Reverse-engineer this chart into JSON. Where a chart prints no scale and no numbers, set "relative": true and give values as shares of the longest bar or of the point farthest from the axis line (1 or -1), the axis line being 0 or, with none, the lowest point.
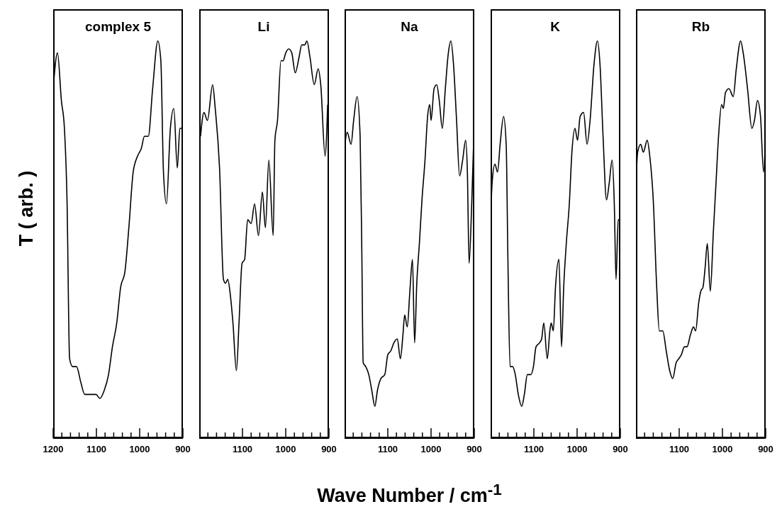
{
  "chart_data": [
    {
      "type": "line",
      "title": "complex 5",
      "ylabel": "T  ( arb. )",
      "relative": true,
      "color": "#000000",
      "xlim": [
        1200,
        900
      ],
      "xticks": [
        1200,
        {
          "value": 1180,
          "label": null
        },
        {
          "value": 1160,
          "label": null
        },
        {
          "value": 1140,
          "label": null
        },
        {
          "value": 1120,
          "label": null
        },
        1100,
        {
          "value": 1080,
          "label": null
        },
        {
          "value": 1060,
          "label": null
        },
        {
          "value": 1040,
          "label": null
        },
        {
          "value": 1020,
          "label": null
        },
        1000,
        {
          "value": 980,
          "label": null
        },
        {
          "value": 960,
          "label": null
        },
        {
          "value": 940,
          "label": null
        },
        {
          "value": 920,
          "label": null
        },
        900
      ],
      "x": [
        1200,
        1190,
        1181,
        1174,
        1168,
        1162,
        1155,
        1146,
        1136,
        1127,
        1120,
        1111,
        1101,
        1092,
        1082,
        1072,
        1063,
        1053,
        1044,
        1034,
        1025,
        1015,
        1005,
        996,
        989,
        980,
        970,
        958,
        951,
        945,
        938,
        929,
        921,
        913,
        907,
        901
      ],
      "values": [
        0.88,
        0.97,
        0.85,
        0.78,
        0.6,
        0.2,
        0.18,
        0.18,
        0.14,
        0.11,
        0.11,
        0.11,
        0.11,
        0.1,
        0.12,
        0.16,
        0.23,
        0.29,
        0.38,
        0.42,
        0.53,
        0.67,
        0.71,
        0.73,
        0.76,
        0.76,
        0.88,
        1.0,
        0.95,
        0.67,
        0.59,
        0.78,
        0.83,
        0.68,
        0.78,
        0.78
      ]
    },
    {
      "type": "line",
      "title": "Li",
      "relative": true,
      "color": "#000000",
      "xlim": [
        1200,
        900
      ],
      "xticks": [
        {
          "value": 1180,
          "label": null
        },
        {
          "value": 1160,
          "label": null
        },
        {
          "value": 1140,
          "label": null
        },
        {
          "value": 1120,
          "label": null
        },
        1100,
        {
          "value": 1080,
          "label": null
        },
        {
          "value": 1060,
          "label": null
        },
        {
          "value": 1040,
          "label": null
        },
        {
          "value": 1020,
          "label": null
        },
        1000,
        {
          "value": 980,
          "label": null
        },
        {
          "value": 960,
          "label": null
        },
        {
          "value": 940,
          "label": null
        },
        {
          "value": 920,
          "label": null
        },
        900
      ],
      "x": [
        1197,
        1189,
        1181,
        1169,
        1163,
        1153,
        1144,
        1139,
        1134,
        1128,
        1122,
        1114,
        1108,
        1101,
        1095,
        1088,
        1080,
        1072,
        1063,
        1054,
        1047,
        1039,
        1029,
        1025,
        1019,
        1011,
        1006,
        1000,
        993,
        986,
        978,
        969,
        963,
        956,
        951,
        944,
        934,
        925,
        919,
        909,
        903
      ],
      "values": [
        0.76,
        0.82,
        0.8,
        0.89,
        0.83,
        0.68,
        0.4,
        0.39,
        0.4,
        0.36,
        0.29,
        0.17,
        0.29,
        0.44,
        0.45,
        0.55,
        0.54,
        0.59,
        0.51,
        0.62,
        0.53,
        0.7,
        0.51,
        0.75,
        0.8,
        0.95,
        0.95,
        0.97,
        0.98,
        0.97,
        0.92,
        0.96,
        0.99,
        0.99,
        1.0,
        0.96,
        0.89,
        0.93,
        0.89,
        0.71,
        0.84
      ]
    },
    {
      "type": "line",
      "title": "Na",
      "xlabel": "Wave Number / cm$^{-1}$",
      "relative": true,
      "color": "#000000",
      "xlim": [
        1200,
        900
      ],
      "xticks": [
        {
          "value": 1180,
          "label": null
        },
        {
          "value": 1160,
          "label": null
        },
        {
          "value": 1140,
          "label": null
        },
        {
          "value": 1120,
          "label": null
        },
        1100,
        {
          "value": 1080,
          "label": null
        },
        {
          "value": 1060,
          "label": null
        },
        {
          "value": 1040,
          "label": null
        },
        {
          "value": 1020,
          "label": null
        },
        1000,
        {
          "value": 980,
          "label": null
        },
        {
          "value": 960,
          "label": null
        },
        {
          "value": 940,
          "label": null
        },
        {
          "value": 920,
          "label": null
        },
        900
      ],
      "x": [
        1200,
        1194,
        1185,
        1179,
        1171,
        1164,
        1160,
        1157,
        1151,
        1144,
        1137,
        1130,
        1124,
        1116,
        1107,
        1100,
        1093,
        1086,
        1078,
        1071,
        1065,
        1061,
        1055,
        1049,
        1043,
        1038,
        1033,
        1027,
        1021,
        1014,
        1008,
        1003,
        1000,
        993,
        987,
        981,
        974,
        967,
        960,
        954,
        948,
        941,
        934,
        927,
        920,
        916,
        912,
        906,
        902
      ],
      "values": [
        0.73,
        0.77,
        0.74,
        0.8,
        0.86,
        0.76,
        0.46,
        0.19,
        0.18,
        0.16,
        0.12,
        0.08,
        0.12,
        0.15,
        0.16,
        0.21,
        0.22,
        0.24,
        0.25,
        0.2,
        0.26,
        0.31,
        0.28,
        0.37,
        0.45,
        0.24,
        0.39,
        0.49,
        0.6,
        0.7,
        0.81,
        0.84,
        0.8,
        0.88,
        0.89,
        0.85,
        0.78,
        0.88,
        0.97,
        1.0,
        0.94,
        0.8,
        0.66,
        0.7,
        0.75,
        0.67,
        0.44,
        0.59,
        0.73
      ]
    },
    {
      "type": "line",
      "title": "K",
      "relative": true,
      "color": "#000000",
      "xlim": [
        1200,
        900
      ],
      "xticks": [
        {
          "value": 1180,
          "label": null
        },
        {
          "value": 1160,
          "label": null
        },
        {
          "value": 1140,
          "label": null
        },
        {
          "value": 1120,
          "label": null
        },
        1100,
        {
          "value": 1080,
          "label": null
        },
        {
          "value": 1060,
          "label": null
        },
        {
          "value": 1040,
          "label": null
        },
        {
          "value": 1020,
          "label": null
        },
        1000,
        {
          "value": 980,
          "label": null
        },
        {
          "value": 960,
          "label": null
        },
        {
          "value": 940,
          "label": null
        },
        {
          "value": 920,
          "label": null
        },
        900
      ],
      "x": [
        1200,
        1196,
        1190,
        1184,
        1178,
        1170,
        1164,
        1160,
        1155,
        1149,
        1143,
        1136,
        1128,
        1122,
        1115,
        1107,
        1101,
        1095,
        1087,
        1082,
        1077,
        1069,
        1063,
        1060,
        1055,
        1050,
        1042,
        1036,
        1031,
        1025,
        1018,
        1012,
        1005,
        999,
        993,
        985,
        977,
        970,
        961,
        953,
        947,
        940,
        932,
        926,
        919,
        914,
        910,
        905,
        900
      ],
      "values": [
        0.56,
        0.65,
        0.69,
        0.67,
        0.74,
        0.81,
        0.74,
        0.45,
        0.18,
        0.18,
        0.16,
        0.11,
        0.08,
        0.11,
        0.16,
        0.16,
        0.18,
        0.23,
        0.24,
        0.25,
        0.29,
        0.2,
        0.27,
        0.29,
        0.27,
        0.38,
        0.45,
        0.23,
        0.38,
        0.49,
        0.59,
        0.72,
        0.78,
        0.75,
        0.81,
        0.82,
        0.74,
        0.8,
        0.94,
        1.0,
        0.94,
        0.76,
        0.6,
        0.64,
        0.7,
        0.59,
        0.4,
        0.55,
        0.55
      ]
    },
    {
      "type": "line",
      "title": "Rb",
      "relative": true,
      "color": "#000000",
      "xlim": [
        1200,
        900
      ],
      "xticks": [
        {
          "value": 1180,
          "label": null
        },
        {
          "value": 1160,
          "label": null
        },
        {
          "value": 1140,
          "label": null
        },
        {
          "value": 1120,
          "label": null
        },
        1100,
        {
          "value": 1080,
          "label": null
        },
        {
          "value": 1060,
          "label": null
        },
        {
          "value": 1040,
          "label": null
        },
        {
          "value": 1020,
          "label": null
        },
        1000,
        {
          "value": 980,
          "label": null
        },
        {
          "value": 960,
          "label": null
        },
        {
          "value": 940,
          "label": null
        },
        {
          "value": 920,
          "label": null
        },
        900
      ],
      "x": [
        1200,
        1196,
        1189,
        1183,
        1174,
        1168,
        1160,
        1152,
        1146,
        1138,
        1130,
        1122,
        1115,
        1107,
        1101,
        1095,
        1088,
        1082,
        1074,
        1067,
        1062,
        1055,
        1050,
        1045,
        1040,
        1035,
        1028,
        1021,
        1015,
        1009,
        1002,
        998,
        993,
        985,
        975,
        968,
        958,
        952,
        942,
        932,
        926,
        919,
        912,
        905,
        900
      ],
      "values": [
        0.64,
        0.72,
        0.74,
        0.72,
        0.75,
        0.71,
        0.6,
        0.38,
        0.27,
        0.27,
        0.22,
        0.17,
        0.15,
        0.19,
        0.2,
        0.21,
        0.23,
        0.23,
        0.26,
        0.28,
        0.27,
        0.34,
        0.37,
        0.38,
        0.43,
        0.49,
        0.37,
        0.52,
        0.64,
        0.76,
        0.84,
        0.83,
        0.87,
        0.88,
        0.86,
        0.93,
        1.0,
        0.97,
        0.88,
        0.78,
        0.8,
        0.85,
        0.81,
        0.67,
        0.78
      ]
    }
  ]
}
